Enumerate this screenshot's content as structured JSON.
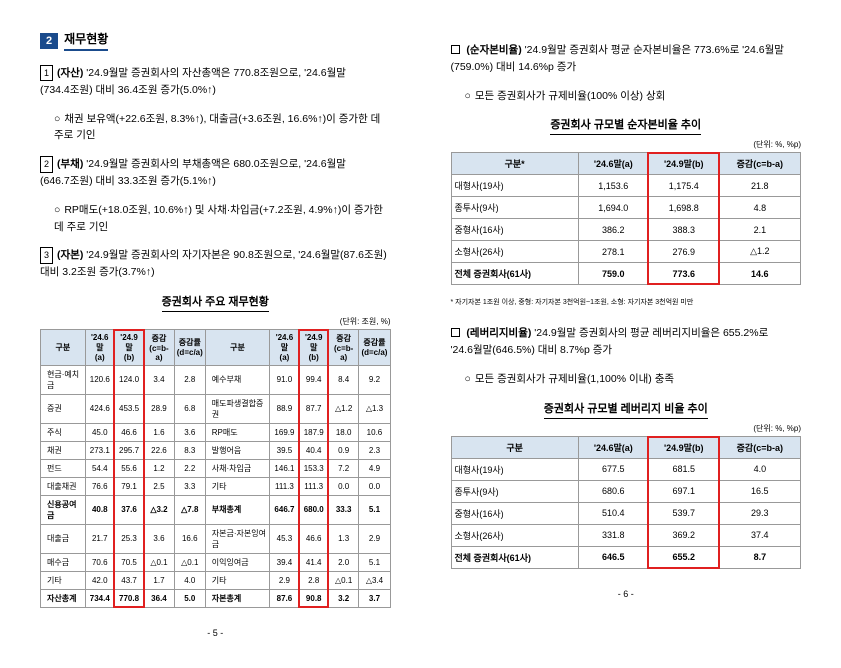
{
  "left": {
    "section_num": "2",
    "section_title": "재무현황",
    "items": [
      {
        "num": "1",
        "bold": "(자산)",
        "text": " '24.9월말 증권회사의 자산총액은 770.8조원으로, '24.6월말(734.4조원) 대비 36.4조원 증가(5.0%↑)",
        "sub": "채권 보유액(+22.6조원, 8.3%↑), 대출금(+3.6조원, 16.6%↑)이 증가한 데 주로 기인"
      },
      {
        "num": "2",
        "bold": "(부채)",
        "text": " '24.9월말 증권회사의 부채총액은 680.0조원으로, '24.6월말(646.7조원) 대비 33.3조원 증가(5.1%↑)",
        "sub": "RP매도(+18.0조원, 10.6%↑) 및 사채·차입금(+7.2조원, 4.9%↑)이 증가한데 주로 기인"
      },
      {
        "num": "3",
        "bold": "(자본)",
        "text": " '24.9월말 증권회사의 자기자본은 90.8조원으로, '24.6월말(87.6조원) 대비 3.2조원 증가(3.7%↑)"
      }
    ],
    "table_title": "증권회사 주요 재무현황",
    "unit": "(단위: 조원, %)",
    "heads": [
      "구분",
      "'24.6말\n(a)",
      "'24.9말\n(b)",
      "증감\n(c=b-a)",
      "증감률\n(d=c/a)",
      "구분",
      "'24.6말\n(a)",
      "'24.9말\n(b)",
      "증감\n(c=b-a)",
      "증감률\n(d=c/a)"
    ],
    "rows": [
      [
        "현금·예치금",
        "120.6",
        "124.0",
        "3.4",
        "2.8",
        "예수부채",
        "91.0",
        "99.4",
        "8.4",
        "9.2"
      ],
      [
        "증권",
        "424.6",
        "453.5",
        "28.9",
        "6.8",
        "매도파생결합증권",
        "88.9",
        "87.7",
        "△1.2",
        "△1.3"
      ],
      [
        "주식",
        "45.0",
        "46.6",
        "1.6",
        "3.6",
        "RP매도",
        "169.9",
        "187.9",
        "18.0",
        "10.6"
      ],
      [
        "채권",
        "273.1",
        "295.7",
        "22.6",
        "8.3",
        "발행어음",
        "39.5",
        "40.4",
        "0.9",
        "2.3"
      ],
      [
        "펀드",
        "54.4",
        "55.6",
        "1.2",
        "2.2",
        "사채·차입금",
        "146.1",
        "153.3",
        "7.2",
        "4.9"
      ],
      [
        "대출채권",
        "76.6",
        "79.1",
        "2.5",
        "3.3",
        "기타",
        "111.3",
        "111.3",
        "0.0",
        "0.0"
      ],
      [
        "신용공여금",
        "40.8",
        "37.6",
        "△3.2",
        "△7.8",
        "부채총계",
        "646.7",
        "680.0",
        "33.3",
        "5.1"
      ],
      [
        "대출금",
        "21.7",
        "25.3",
        "3.6",
        "16.6",
        "자본금·자본잉여금",
        "45.3",
        "46.6",
        "1.3",
        "2.9"
      ],
      [
        "매수금",
        "70.6",
        "70.5",
        "△0.1",
        "△0.1",
        "이익잉여금",
        "39.4",
        "41.4",
        "2.0",
        "5.1"
      ],
      [
        "기타",
        "42.0",
        "43.7",
        "1.7",
        "4.0",
        "기타",
        "2.9",
        "2.8",
        "△0.1",
        "△3.4"
      ],
      [
        "자산총계",
        "734.4",
        "770.8",
        "36.4",
        "5.0",
        "자본총계",
        "87.6",
        "90.8",
        "3.2",
        "3.7"
      ]
    ],
    "page": "- 5 -"
  },
  "right": {
    "block1": {
      "bold": "(순자본비율)",
      "text": " '24.9월말 증권회사 평균 순자본비율은 773.6%로 '24.6월말(759.0%) 대비 14.6%p 증가",
      "sub": "모든 증권회사가 규제비율(100% 이상) 상회"
    },
    "t1_title": "증권회사 규모별 순자본비율 추이",
    "t1_unit": "(단위: %, %p)",
    "t1_heads": [
      "구분*",
      "'24.6말(a)",
      "'24.9말(b)",
      "증감(c=b-a)"
    ],
    "t1_rows": [
      [
        "대형사(19사)",
        "1,153.6",
        "1,175.4",
        "21.8"
      ],
      [
        "  종투사(9사)",
        "1,694.0",
        "1,698.8",
        "4.8"
      ],
      [
        "중형사(16사)",
        "386.2",
        "388.3",
        "2.1"
      ],
      [
        "소형사(26사)",
        "278.1",
        "276.9",
        "△1.2"
      ],
      [
        "전체 증권회사(61사)",
        "759.0",
        "773.6",
        "14.6"
      ]
    ],
    "t1_foot": "* 자기자본 1조원 이상, 중형: 자기자본 3천억원~1조원, 소형: 자기자본 3천억원 미만",
    "block2": {
      "bold": "(레버리지비율)",
      "text": " '24.9월말 증권회사의 평균 레버리지비율은 655.2%로 '24.6월말(646.5%) 대비 8.7%p 증가",
      "sub": "모든 증권회사가 규제비율(1,100% 이내) 충족"
    },
    "t2_title": "증권회사 규모별 레버리지 비율 추이",
    "t2_unit": "(단위: %, %p)",
    "t2_heads": [
      "구분",
      "'24.6말(a)",
      "'24.9말(b)",
      "증감(c=b-a)"
    ],
    "t2_rows": [
      [
        "대형사(19사)",
        "677.5",
        "681.5",
        "4.0"
      ],
      [
        "  종투사(9사)",
        "680.6",
        "697.1",
        "16.5"
      ],
      [
        "중형사(16사)",
        "510.4",
        "539.7",
        "29.3"
      ],
      [
        "소형사(26사)",
        "331.8",
        "369.2",
        "37.4"
      ],
      [
        "전체 증권회사(61사)",
        "646.5",
        "655.2",
        "8.7"
      ]
    ],
    "page": "- 6 -"
  }
}
